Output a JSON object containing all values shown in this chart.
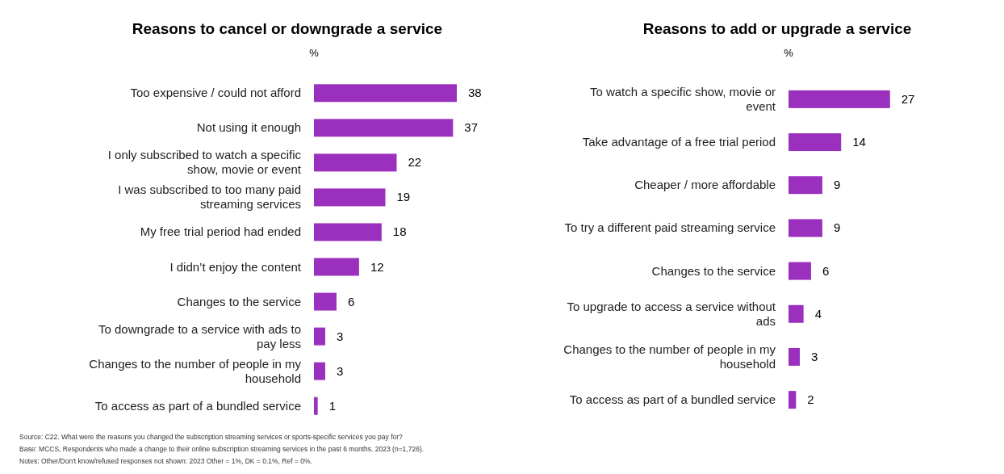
{
  "chart_data": [
    {
      "type": "bar",
      "orientation": "horizontal",
      "title": "Reasons to cancel or downgrade a service",
      "xlabel": "%",
      "color": "#9b30bf",
      "data_labels": true,
      "categories": [
        "Too expensive / could not afford",
        "Not using it enough",
        "I only subscribed to watch a specific show, movie or event",
        "I was subscribed to too many paid streaming services",
        "My free trial period had ended",
        "I didn’t enjoy the content",
        "Changes to the service",
        "To downgrade to a service with ads to pay less",
        "Changes to the number of people in my household",
        "To access as part of a bundled service"
      ],
      "values": [
        38,
        37,
        22,
        19,
        18,
        12,
        6,
        3,
        3,
        1
      ],
      "annotations": [
        "Source: C22. What were the reasons you changed the subscription streaming services or sports-specific services you pay for?",
        "Base: MCCS, Respondents who made a change to their online subscription streaming services in the past 6 months. 2023 (n=1,726).",
        "Notes: Other/Don't know/refused responses not shown: 2023 Other = 1%, DK = 0.1%, Ref = 0%."
      ]
    },
    {
      "type": "bar",
      "orientation": "horizontal",
      "title": "Reasons to add or upgrade a service",
      "xlabel": "%",
      "color": "#9b30bf",
      "data_labels": true,
      "categories": [
        "To watch a specific show, movie or event",
        "Take advantage of a free trial period",
        "Cheaper / more affordable",
        "To try a different paid streaming service",
        "Changes to the service",
        "To upgrade to access a service without ads",
        "Changes to the number of people in my household",
        "To access as part of a bundled service"
      ],
      "values": [
        27,
        14,
        9,
        9,
        6,
        4,
        3,
        2
      ]
    }
  ]
}
